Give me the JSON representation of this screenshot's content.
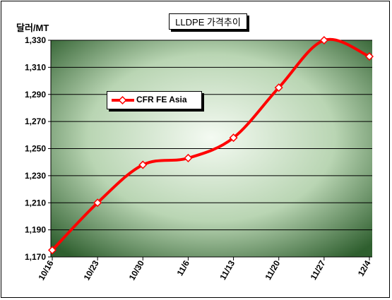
{
  "chart_data": {
    "type": "line",
    "title": "LLDPE 가격추이",
    "ylabel": "달러/MT",
    "xlabel": "",
    "categories": [
      "10/16",
      "10/23",
      "10/30",
      "11/6",
      "11/13",
      "11/20",
      "11/27",
      "12/4"
    ],
    "series": [
      {
        "name": "CFR FE Asia",
        "values": [
          1175,
          1210,
          1238,
          1243,
          1258,
          1295,
          1330,
          1318
        ]
      }
    ],
    "ylim": [
      1170,
      1330
    ],
    "yticks": [
      1170,
      1190,
      1210,
      1230,
      1250,
      1270,
      1290,
      1310,
      1330
    ],
    "ytick_labels": [
      "1,170",
      "1,190",
      "1,210",
      "1,230",
      "1,250",
      "1,270",
      "1,290",
      "1,310",
      "1,330"
    ],
    "grid": true,
    "legend_position": "upper-left",
    "colors": {
      "line": "#ff0000",
      "marker_fill": "#ffffff",
      "plot_bg_edge": "#2f5f2f",
      "plot_bg_center": "#f4faf2"
    }
  }
}
